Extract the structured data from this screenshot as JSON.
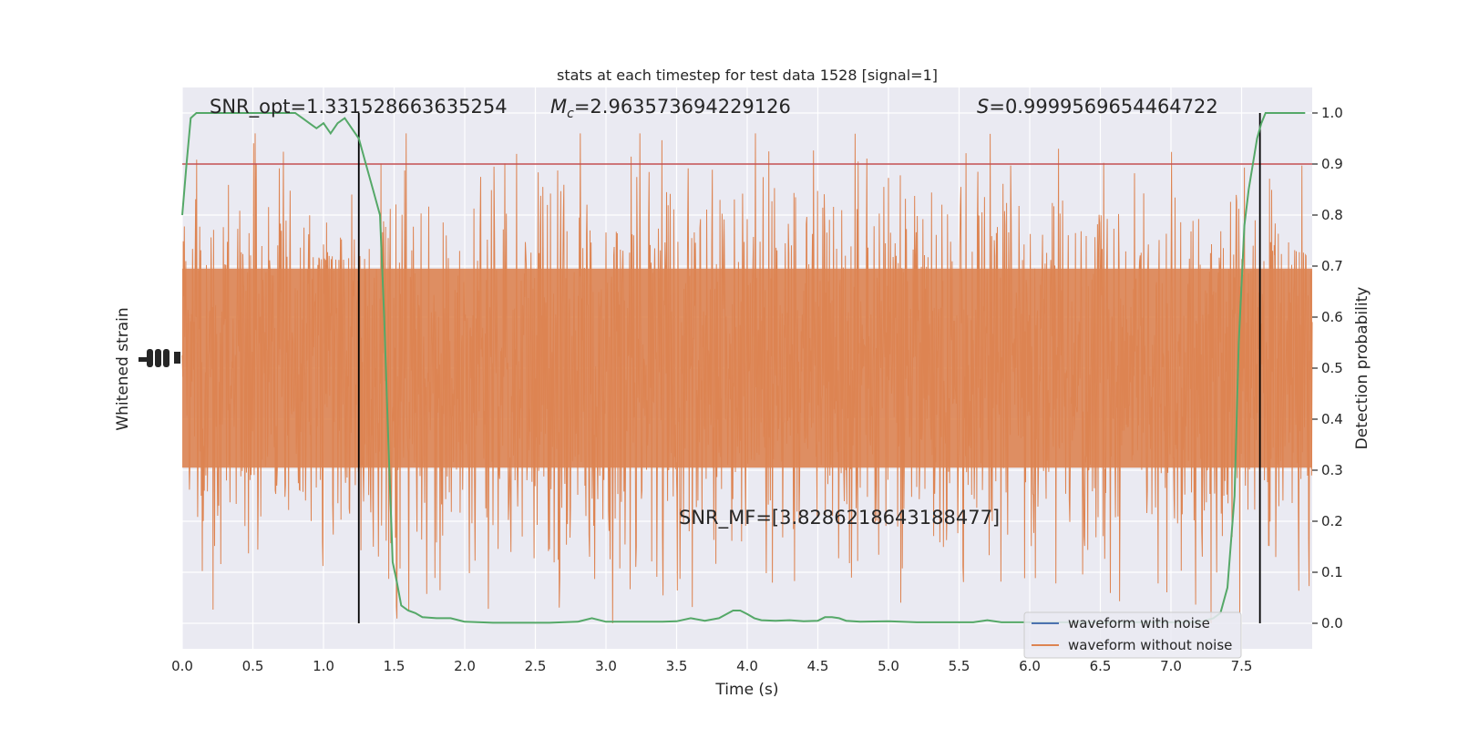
{
  "chart_data": {
    "type": "line",
    "title": "stats at each timestep for test data 1528 [signal=1]",
    "xlabel": "Time (s)",
    "ylabel_left": "Whitened strain",
    "ylabel_right": "Detection probability",
    "xlim": [
      0.0,
      8.0
    ],
    "ylim_right": [
      -0.05,
      1.05
    ],
    "x_ticks": [
      "0.0",
      "0.5",
      "1.0",
      "1.5",
      "2.0",
      "2.5",
      "3.0",
      "3.5",
      "4.0",
      "4.5",
      "5.0",
      "5.5",
      "6.0",
      "6.5",
      "7.0",
      "7.5"
    ],
    "y_ticks_right": [
      "0.0",
      "0.1",
      "0.2",
      "0.3",
      "0.4",
      "0.5",
      "0.6",
      "0.7",
      "0.8",
      "0.9",
      "1.0"
    ],
    "grid": true,
    "legend_position": "lower-right",
    "annotations": {
      "snr_opt": "SNR_opt=1.331528663635254",
      "chirp_mass_symbol": "M",
      "chirp_mass_sub": "c",
      "chirp_mass_value": "=2.963573694229126",
      "s_symbol": "S",
      "s_value": "=0.9999569654464722",
      "snr_mf": "SNR_MF=[3.8286218643188477]"
    },
    "threshold": {
      "y": 0.9,
      "color": "#c44e52"
    },
    "vertical_lines": {
      "x": [
        1.25,
        7.63
      ],
      "color": "#000000"
    },
    "series": [
      {
        "name": "waveform with noise",
        "color": "#4c72b0"
      },
      {
        "name": "waveform without noise",
        "color": "#dd8452"
      },
      {
        "color": "#55a868",
        "x": [
          0.0,
          0.03,
          0.06,
          0.1,
          0.15,
          0.2,
          0.3,
          0.4,
          0.5,
          0.6,
          0.7,
          0.8,
          0.85,
          0.9,
          0.95,
          1.0,
          1.05,
          1.1,
          1.15,
          1.2,
          1.25,
          1.3,
          1.35,
          1.4,
          1.43,
          1.46,
          1.49,
          1.52,
          1.55,
          1.6,
          1.65,
          1.7,
          1.8,
          1.9,
          2.0,
          2.2,
          2.4,
          2.6,
          2.8,
          2.9,
          3.0,
          3.2,
          3.4,
          3.5,
          3.6,
          3.7,
          3.8,
          3.9,
          3.95,
          4.0,
          4.05,
          4.1,
          4.2,
          4.3,
          4.4,
          4.5,
          4.55,
          4.6,
          4.65,
          4.7,
          4.8,
          5.0,
          5.2,
          5.4,
          5.6,
          5.7,
          5.8,
          5.9,
          6.0,
          6.2,
          6.4,
          6.6,
          6.8,
          7.0,
          7.2,
          7.3,
          7.35,
          7.4,
          7.45,
          7.48,
          7.52,
          7.55,
          7.58,
          7.61,
          7.64,
          7.67,
          7.72,
          7.77,
          7.85,
          7.95
        ],
        "y": [
          0.8,
          0.9,
          0.99,
          1.0,
          1.0,
          1.0,
          1.0,
          1.0,
          1.0,
          1.0,
          1.0,
          1.0,
          0.99,
          0.98,
          0.97,
          0.98,
          0.96,
          0.98,
          0.99,
          0.97,
          0.95,
          0.9,
          0.85,
          0.8,
          0.6,
          0.35,
          0.12,
          0.08,
          0.035,
          0.025,
          0.02,
          0.012,
          0.01,
          0.01,
          0.003,
          0.001,
          0.001,
          0.001,
          0.003,
          0.01,
          0.003,
          0.003,
          0.003,
          0.004,
          0.01,
          0.005,
          0.01,
          0.025,
          0.025,
          0.018,
          0.01,
          0.006,
          0.005,
          0.006,
          0.004,
          0.005,
          0.012,
          0.012,
          0.01,
          0.005,
          0.003,
          0.004,
          0.002,
          0.002,
          0.002,
          0.006,
          0.002,
          0.002,
          0.002,
          0.002,
          0.002,
          0.002,
          0.002,
          0.002,
          0.002,
          0.01,
          0.02,
          0.07,
          0.25,
          0.55,
          0.78,
          0.85,
          0.9,
          0.95,
          0.98,
          1.0,
          1.0,
          1.0,
          1.0,
          1.0
        ]
      }
    ]
  }
}
